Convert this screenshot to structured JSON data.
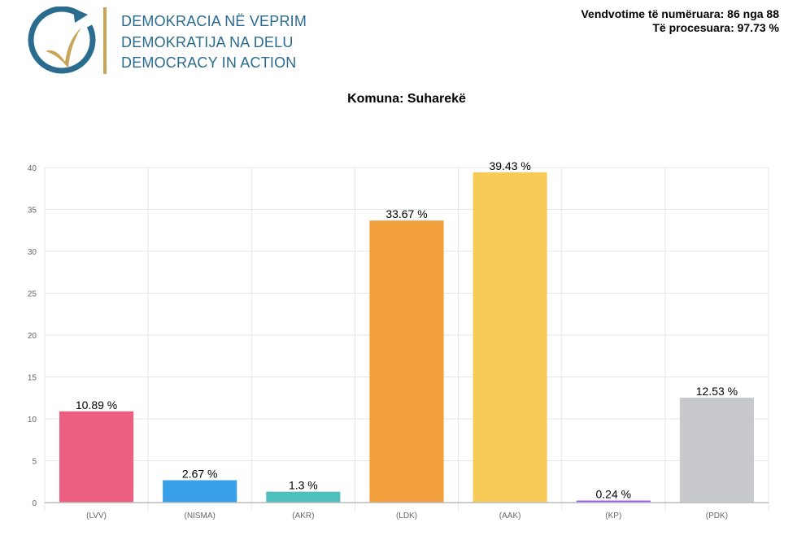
{
  "header": {
    "logo_lines": [
      "DEMOKRACIA NË VEPRIM",
      "DEMOKRATIJA NA DELU",
      "DEMOCRACY IN ACTION"
    ],
    "counted_stations": "Vendvotime të numëruara: 86 nga 88",
    "processed": "Të procesuara: 97.73 %"
  },
  "chart_data": {
    "type": "bar",
    "title": "Komuna: Suharekë",
    "categories": [
      "(LVV)",
      "(NISMA)",
      "(AKR)",
      "(LDK)",
      "(AAK)",
      "(KP)",
      "(PDK)"
    ],
    "values": [
      10.89,
      2.67,
      1.3,
      33.67,
      39.43,
      0.24,
      12.53
    ],
    "data_labels": [
      "10.89 %",
      "2.67 %",
      "1.3 %",
      "33.67 %",
      "39.43 %",
      "0.24 %",
      "12.53 %"
    ],
    "colors": [
      "#ec5f80",
      "#37a0e8",
      "#4dbfbd",
      "#f29f3d",
      "#f7cb58",
      "#9a5cf0",
      "#c8c9cc"
    ],
    "yticks": [
      0,
      5,
      10,
      15,
      20,
      25,
      30,
      35,
      40
    ],
    "ylim": [
      0,
      40
    ],
    "grid": true,
    "legend": "none"
  }
}
